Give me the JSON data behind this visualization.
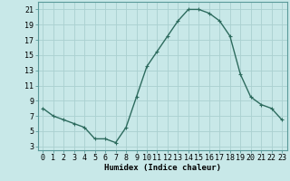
{
  "x": [
    0,
    1,
    2,
    3,
    4,
    5,
    6,
    7,
    8,
    9,
    10,
    11,
    12,
    13,
    14,
    15,
    16,
    17,
    18,
    19,
    20,
    21,
    22,
    23
  ],
  "y": [
    8,
    7,
    6.5,
    6,
    5.5,
    4,
    4,
    3.5,
    5.5,
    9.5,
    13.5,
    15.5,
    17.5,
    19.5,
    21,
    21,
    20.5,
    19.5,
    17.5,
    12.5,
    9.5,
    8.5,
    8,
    6.5
  ],
  "line_color": "#2d6b5e",
  "marker": "+",
  "marker_size": 3,
  "background_color": "#c8e8e8",
  "grid_color": "#aad0d0",
  "xlabel": "Humidex (Indice chaleur)",
  "xlim": [
    -0.5,
    23.5
  ],
  "ylim": [
    2.5,
    22
  ],
  "yticks": [
    3,
    5,
    7,
    9,
    11,
    13,
    15,
    17,
    19,
    21
  ],
  "xtick_labels": [
    "0",
    "1",
    "2",
    "3",
    "4",
    "5",
    "6",
    "7",
    "8",
    "9",
    "10",
    "11",
    "12",
    "13",
    "14",
    "15",
    "16",
    "17",
    "18",
    "19",
    "20",
    "21",
    "22",
    "23"
  ],
  "xlabel_fontsize": 6.5,
  "tick_fontsize": 6,
  "line_width": 1.0
}
